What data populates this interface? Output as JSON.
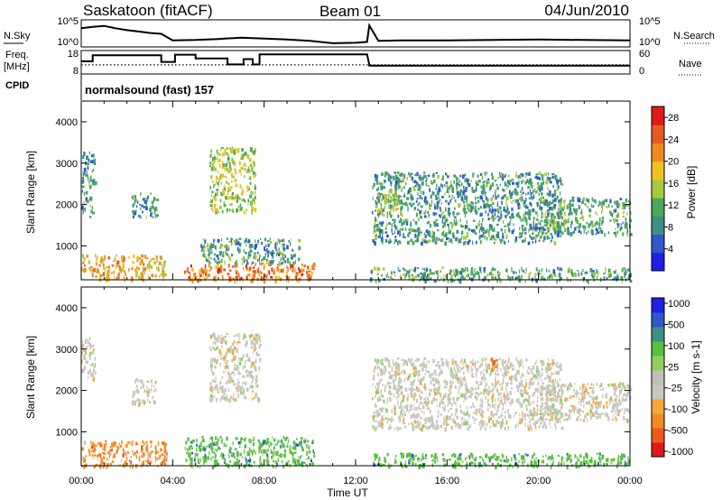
{
  "header": {
    "station": "Saskatoon (fitACF)",
    "beam": "Beam 01",
    "date": "04/Jun/2010"
  },
  "labels": {
    "nsky": "N.Sky",
    "nsearch": "N.Search",
    "freq_line1": "Freq.",
    "freq_line2": "[MHz]",
    "nave": "Nave",
    "cpid": "CPID",
    "cpid_value": "normalsound (fast) 157",
    "nsky_tick_hi": "10^5",
    "nsky_tick_lo": "10^0",
    "nsearch_tick_hi": "10^5",
    "nsearch_tick_lo": "10^0",
    "freq_tick_hi": "18",
    "freq_tick_lo": "8",
    "nave_tick_hi": "60",
    "nave_tick_lo": "0"
  },
  "colors": {
    "power_scale": [
      "#1f1fe6",
      "#2f58c9",
      "#3f8f88",
      "#4aa858",
      "#a8c83e",
      "#f0c020",
      "#f08a20",
      "#e85a20",
      "#e01a1a"
    ],
    "velocity_scale": [
      "#e01a1a",
      "#ee5a1e",
      "#f48a22",
      "#f2a83a",
      "#c8c8c0",
      "#c0c0b8",
      "#8fd060",
      "#58c040",
      "#3f8f88",
      "#2f58c9",
      "#1f1fe6"
    ]
  },
  "chart_data": [
    {
      "type": "line",
      "title": "N.Sky / N.Search",
      "xlabel": "",
      "ylabel": "N.Sky",
      "ylabel_right": "N.Search",
      "x_unit": "hours UT",
      "xlim": [
        0,
        24
      ],
      "yscale": "log",
      "ylim_labels": [
        "10^0",
        "10^5"
      ],
      "series": [
        {
          "name": "N.Sky",
          "x": [
            0,
            0.5,
            1,
            1.5,
            2,
            2.5,
            3,
            3.5,
            4,
            5,
            6,
            7,
            8,
            9,
            10,
            11,
            12,
            12.5,
            12.6,
            13,
            14,
            16,
            18,
            20,
            22,
            24
          ],
          "y_log": [
            3.6,
            3.9,
            4.1,
            3.6,
            3.2,
            2.9,
            2.6,
            2.4,
            1.0,
            1.1,
            1.3,
            1.6,
            1.4,
            1.2,
            0.9,
            0.4,
            0.5,
            0.7,
            4.2,
            0.9,
            1.0,
            1.0,
            1.1,
            1.2,
            1.1,
            1.0
          ]
        }
      ]
    },
    {
      "type": "line",
      "title": "Freq. / Nave",
      "ylabel": "Freq. [MHz]",
      "ylabel_right": "Nave",
      "x_unit": "hours UT",
      "xlim": [
        0,
        24
      ],
      "ylim": [
        8,
        18
      ],
      "ylim_right": [
        0,
        60
      ],
      "series": [
        {
          "name": "Freq.",
          "x": [
            0,
            0.5,
            0.5,
            3.5,
            3.5,
            4.1,
            4.1,
            5.0,
            5.0,
            6.4,
            6.4,
            7.1,
            7.1,
            7.5,
            7.5,
            7.8,
            7.8,
            12.5,
            12.5,
            12.6,
            12.6,
            24
          ],
          "y": [
            13.5,
            13.5,
            16.5,
            16.5,
            13.2,
            13.2,
            16.8,
            16.8,
            14.9,
            14.9,
            11.9,
            11.9,
            14.6,
            14.6,
            11.9,
            11.9,
            17.0,
            17.0,
            17.0,
            11.8,
            11.3,
            11.3
          ]
        },
        {
          "name": "Nave",
          "x": [
            0,
            4,
            8,
            10,
            12.5,
            14,
            18,
            24
          ],
          "y": [
            22,
            22,
            22,
            22,
            22,
            22,
            22,
            22
          ]
        }
      ]
    },
    {
      "type": "heatmap",
      "title": "",
      "xlabel": "",
      "ylabel": "Slant Range [km]",
      "x_unit": "hours UT",
      "xlim": [
        0,
        24
      ],
      "ylim": [
        180,
        4500
      ],
      "yticks": [
        1000,
        2000,
        3000,
        4000
      ],
      "colorbar": {
        "label": "Power [dB]",
        "range": [
          0,
          30
        ],
        "ticks": [
          4,
          8,
          12,
          16,
          20,
          24,
          28
        ]
      },
      "echo_regions": [
        {
          "t_start": 0.0,
          "t_end": 3.7,
          "r_start": 200,
          "r_end": 800,
          "value": 20
        },
        {
          "t_start": 0.0,
          "t_end": 0.6,
          "r_start": 2300,
          "r_end": 3300,
          "value": 8
        },
        {
          "t_start": 0.0,
          "t_end": 0.5,
          "r_start": 1700,
          "r_end": 2200,
          "value": 10
        },
        {
          "t_start": 2.2,
          "t_end": 3.3,
          "r_start": 1700,
          "r_end": 2300,
          "value": 9
        },
        {
          "t_start": 4.5,
          "t_end": 10.2,
          "r_start": 180,
          "r_end": 600,
          "value": 24
        },
        {
          "t_start": 5.2,
          "t_end": 9.5,
          "r_start": 600,
          "r_end": 1200,
          "value": 9
        },
        {
          "t_start": 5.6,
          "t_end": 7.6,
          "r_start": 1800,
          "r_end": 3400,
          "value": 15
        },
        {
          "t_start": 12.6,
          "t_end": 24.0,
          "r_start": 180,
          "r_end": 500,
          "value": 10
        },
        {
          "t_start": 12.7,
          "t_end": 21.0,
          "r_start": 1100,
          "r_end": 2800,
          "value": 9
        },
        {
          "t_start": 12.9,
          "t_end": 13.8,
          "r_start": 1800,
          "r_end": 2300,
          "value": 17
        },
        {
          "t_start": 20.0,
          "t_end": 24.0,
          "r_start": 1300,
          "r_end": 2200,
          "value": 10
        }
      ]
    },
    {
      "type": "heatmap",
      "title": "",
      "xlabel": "Time UT",
      "ylabel": "Slant Range [km]",
      "x_unit": "hours UT",
      "xlim": [
        0,
        24
      ],
      "ylim": [
        180,
        4500
      ],
      "yticks": [
        1000,
        2000,
        3000,
        4000
      ],
      "xticks": [
        "00:00",
        "04:00",
        "08:00",
        "12:00",
        "16:00",
        "20:00",
        "00:00"
      ],
      "colorbar": {
        "label": "Velocity [m s-1]",
        "ticks": [
          -1000,
          -500,
          -100,
          -25,
          25,
          100,
          500,
          1000
        ]
      },
      "echo_regions": [
        {
          "t_start": 0.0,
          "t_end": 3.7,
          "r_start": 180,
          "r_end": 800,
          "value": -100
        },
        {
          "t_start": 0.0,
          "t_end": 0.6,
          "r_start": 2300,
          "r_end": 3300,
          "value": 0
        },
        {
          "t_start": 2.2,
          "t_end": 3.3,
          "r_start": 1700,
          "r_end": 2300,
          "value": 0
        },
        {
          "t_start": 4.5,
          "t_end": 10.2,
          "r_start": 180,
          "r_end": 900,
          "value": 80
        },
        {
          "t_start": 5.6,
          "t_end": 7.8,
          "r_start": 1800,
          "r_end": 3400,
          "value": 0
        },
        {
          "t_start": 12.6,
          "t_end": 24.0,
          "r_start": 180,
          "r_end": 500,
          "value": 100
        },
        {
          "t_start": 12.7,
          "t_end": 21.0,
          "r_start": 1100,
          "r_end": 2800,
          "value": 0
        },
        {
          "t_start": 17.9,
          "t_end": 18.2,
          "r_start": 2500,
          "r_end": 2800,
          "value": -300
        },
        {
          "t_start": 20.0,
          "t_end": 24.0,
          "r_start": 1300,
          "r_end": 2200,
          "value": 0
        }
      ]
    }
  ]
}
